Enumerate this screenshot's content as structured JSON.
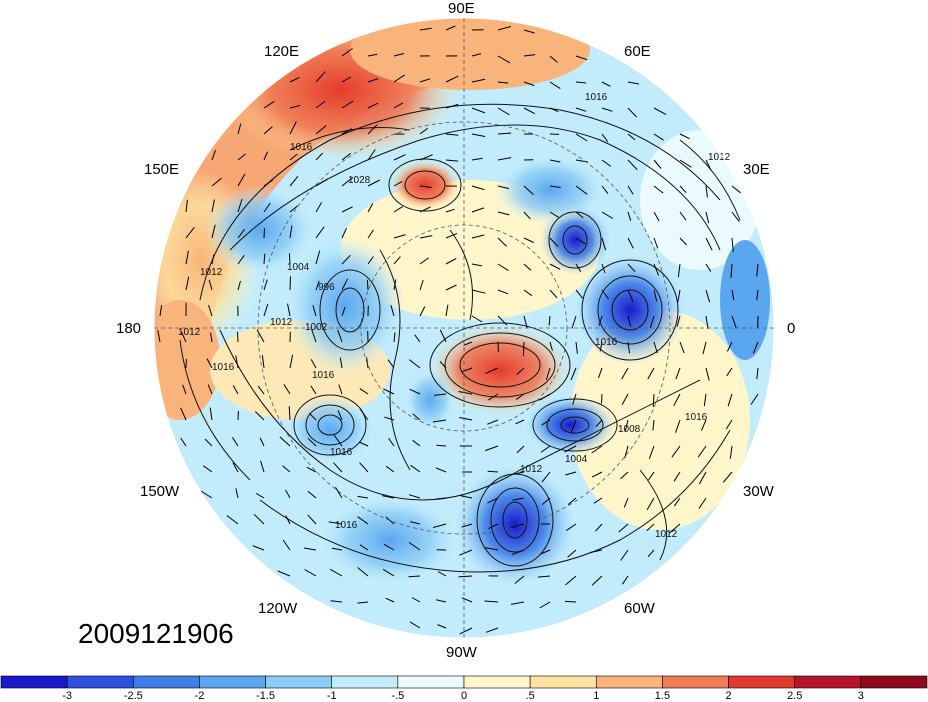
{
  "map": {
    "projection": "north-polar-stereographic",
    "timestamp": "2009121906",
    "longitude_labels": [
      "90E",
      "60E",
      "30E",
      "0",
      "30W",
      "60W",
      "90W",
      "120W",
      "150W",
      "180",
      "150E",
      "120E"
    ],
    "contour_labels": [
      "1016",
      "1012",
      "1004",
      "996",
      "1002",
      "1016",
      "1012",
      "1012",
      "1016",
      "1016",
      "1012",
      "1008",
      "1004",
      "1016",
      "1012",
      "1016",
      "1016",
      "1028",
      "1016",
      "1012"
    ],
    "colorbar": {
      "ticks": [
        "-3",
        "-2.5",
        "-2",
        "-1.5",
        "-1",
        "-.5",
        "0",
        ".5",
        "1",
        "1.5",
        "2",
        "2.5",
        "3"
      ],
      "colors": [
        "#1a1acc",
        "#2f4fe0",
        "#3f7fe8",
        "#5aa6ef",
        "#8ccdf6",
        "#c2ecfb",
        "#ebfbfd",
        "#fff6cc",
        "#fde3a1",
        "#f8b47a",
        "#f07c55",
        "#e03a30",
        "#b5142a",
        "#8f0a1c"
      ]
    },
    "anomaly_fill_colors": {
      "strong_negative": "#1a1acc",
      "negative": "#4f8fe8",
      "weak_negative": "#bfe8fa",
      "neutral": "#ffffff",
      "weak_positive": "#fde9b8",
      "positive": "#f7a773",
      "strong_positive": "#e53b2c"
    }
  }
}
